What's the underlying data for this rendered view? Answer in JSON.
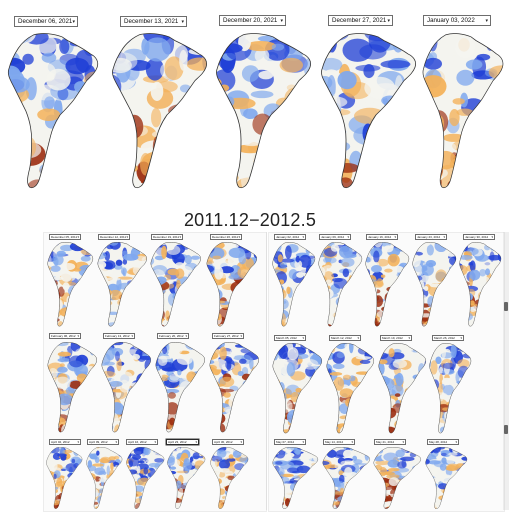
{
  "title": "2011.12−2012.5",
  "top_selects": [
    "December 06, 2021",
    "December 13, 2021",
    "December 20, 2021",
    "December 27, 2021",
    "January 03, 2022"
  ],
  "left_panel": {
    "row1": [
      "December 05, 2011",
      "December 12, 2011",
      "December 19, 2011",
      "December 26, 2011"
    ],
    "row2": [
      "February 06, 2012",
      "February 13, 2012",
      "February 20, 2012",
      "February 27, 2012"
    ],
    "row3": [
      "April 02, 2012",
      "April 09, 2012",
      "April 16, 2012",
      "April 23, 2012",
      "April 30, 2012"
    ]
  },
  "right_panel": {
    "row1": [
      "January 02, 2012",
      "January 09, 2012",
      "January 16, 2012",
      "January 23, 2012",
      "January 30, 2012"
    ],
    "row2": [
      "March 05, 2012",
      "March 12, 2012",
      "March 19, 2012",
      "March 26, 2012"
    ],
    "row3": [
      "May 07, 2012",
      "May 14, 2012",
      "May 21, 2012",
      "May 28, 2012"
    ]
  },
  "dropdown_icon": "chevron-down-icon",
  "colors": {
    "wet": "#1f3fd6",
    "wet_light": "#7fa8ee",
    "neutral": "#f4f4ef",
    "dry_light": "#f3b15a",
    "dry": "#9b2b0e",
    "coast": "#333333"
  }
}
